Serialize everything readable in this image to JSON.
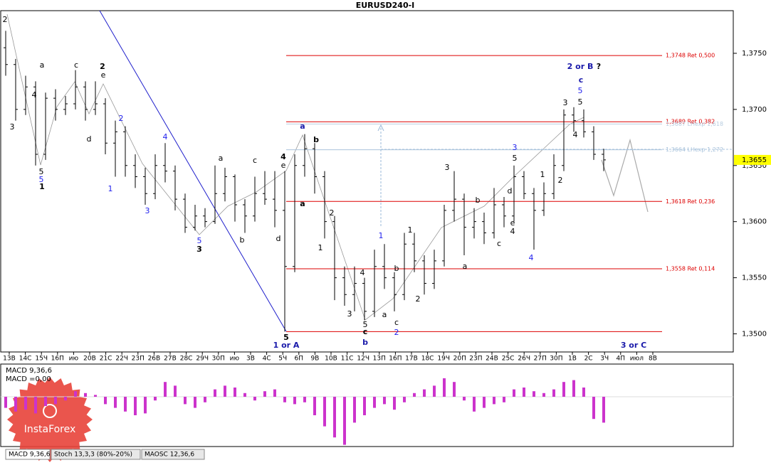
{
  "chart_data": {
    "type": "ohlc",
    "title": "EURUSD240-I",
    "ohlc": [
      [
        1.3755,
        1.377,
        1.373,
        1.374
      ],
      [
        1.374,
        1.3745,
        1.369,
        1.37
      ],
      [
        1.37,
        1.373,
        1.3695,
        1.372
      ],
      [
        1.372,
        1.3725,
        1.365,
        1.366
      ],
      [
        1.366,
        1.3715,
        1.3655,
        1.371
      ],
      [
        1.371,
        1.3718,
        1.369,
        1.37
      ],
      [
        1.37,
        1.3712,
        1.3695,
        1.3705
      ],
      [
        1.3705,
        1.3735,
        1.37,
        1.372
      ],
      [
        1.372,
        1.3725,
        1.369,
        1.37
      ],
      [
        1.37,
        1.3725,
        1.3695,
        1.3705
      ],
      [
        1.3705,
        1.371,
        1.366,
        1.367
      ],
      [
        1.367,
        1.369,
        1.364,
        1.368
      ],
      [
        1.368,
        1.3685,
        1.364,
        1.365
      ],
      [
        1.365,
        1.366,
        1.363,
        1.364
      ],
      [
        1.364,
        1.3648,
        1.3615,
        1.3625
      ],
      [
        1.3625,
        1.366,
        1.362,
        1.365
      ],
      [
        1.365,
        1.367,
        1.3635,
        1.3645
      ],
      [
        1.3645,
        1.365,
        1.361,
        1.362
      ],
      [
        1.362,
        1.3625,
        1.359,
        1.3595
      ],
      [
        1.3595,
        1.3615,
        1.3592,
        1.3605
      ],
      [
        1.3605,
        1.3612,
        1.3595,
        1.36
      ],
      [
        1.36,
        1.365,
        1.3598,
        1.3625
      ],
      [
        1.3625,
        1.3648,
        1.3618,
        1.364
      ],
      [
        1.364,
        1.3642,
        1.36,
        1.3615
      ],
      [
        1.3615,
        1.362,
        1.359,
        1.3605
      ],
      [
        1.3605,
        1.364,
        1.36,
        1.3625
      ],
      [
        1.3625,
        1.3645,
        1.3615,
        1.362
      ],
      [
        1.362,
        1.3645,
        1.3595,
        1.361
      ],
      [
        1.361,
        1.3645,
        1.3502,
        1.356
      ],
      [
        1.356,
        1.366,
        1.3555,
        1.365
      ],
      [
        1.365,
        1.3678,
        1.364,
        1.3665
      ],
      [
        1.3665,
        1.367,
        1.3625,
        1.364
      ],
      [
        1.364,
        1.3645,
        1.3585,
        1.36
      ],
      [
        1.36,
        1.3605,
        1.353,
        1.355
      ],
      [
        1.355,
        1.356,
        1.3525,
        1.3535
      ],
      [
        1.3535,
        1.356,
        1.352,
        1.3545
      ],
      [
        1.3545,
        1.355,
        1.3512,
        1.352
      ],
      [
        1.352,
        1.3575,
        1.3515,
        1.356
      ],
      [
        1.356,
        1.358,
        1.354,
        1.355
      ],
      [
        1.355,
        1.3555,
        1.352,
        1.3535
      ],
      [
        1.3535,
        1.359,
        1.353,
        1.358
      ],
      [
        1.358,
        1.359,
        1.3555,
        1.3565
      ],
      [
        1.3565,
        1.357,
        1.3535,
        1.3545
      ],
      [
        1.3545,
        1.3575,
        1.354,
        1.3565
      ],
      [
        1.3565,
        1.3615,
        1.356,
        1.361
      ],
      [
        1.361,
        1.3645,
        1.36,
        1.362
      ],
      [
        1.362,
        1.3625,
        1.357,
        1.3595
      ],
      [
        1.3595,
        1.3612,
        1.3585,
        1.36
      ],
      [
        1.36,
        1.3608,
        1.358,
        1.359
      ],
      [
        1.359,
        1.363,
        1.3585,
        1.3615
      ],
      [
        1.3615,
        1.3622,
        1.3595,
        1.3605
      ],
      [
        1.3605,
        1.365,
        1.36,
        1.364
      ],
      [
        1.364,
        1.3645,
        1.362,
        1.3625
      ],
      [
        1.3625,
        1.363,
        1.3575,
        1.361
      ],
      [
        1.361,
        1.3635,
        1.3605,
        1.3625
      ],
      [
        1.3625,
        1.366,
        1.362,
        1.365
      ],
      [
        1.365,
        1.37,
        1.3645,
        1.3695
      ],
      [
        1.3695,
        1.3702,
        1.368,
        1.369
      ],
      [
        1.369,
        1.37,
        1.3675,
        1.368
      ],
      [
        1.368,
        1.3685,
        1.3655,
        1.366
      ],
      [
        1.366,
        1.3665,
        1.3645,
        1.3655
      ]
    ],
    "color": "#000000",
    "ylim": [
      1.3487,
      1.3788
    ],
    "yticks": [
      {
        "value": 1.35,
        "label": "1,3500"
      },
      {
        "value": 1.355,
        "label": "1,3550"
      },
      {
        "value": 1.36,
        "label": "1,3600"
      },
      {
        "value": 1.365,
        "label": "1,3650"
      },
      {
        "value": 1.37,
        "label": "1,3700"
      },
      {
        "value": 1.375,
        "label": "1,3750"
      }
    ],
    "current_price": {
      "value": 1.3655,
      "label": "1,3655"
    },
    "fib_levels": [
      {
        "value": 1.3748,
        "label": "1,3748 Ret 0,500",
        "color": "#dd0000"
      },
      {
        "value": 1.3689,
        "label": "1,3689 Ret 0,382",
        "color": "#dd0000"
      },
      {
        "value": 1.3687,
        "label": "1,3687 LHexp 1,618",
        "color": "#b8cde0"
      },
      {
        "value": 1.3664,
        "label": "1,3664 LHexp 1,272",
        "color": "#a9c3dc"
      },
      {
        "value": 1.3618,
        "label": "1,3618 Ret 0,236",
        "color": "#dd0000"
      },
      {
        "value": 1.3558,
        "label": "1,3558 Ret 0,114",
        "color": "#dd0000"
      },
      {
        "value": 1.3502,
        "color": "#dd0000"
      }
    ],
    "x_labels": [
      "13В",
      "14С",
      "15Ч",
      "16П",
      "ию",
      "20В",
      "21С",
      "22Ч",
      "23П",
      "26В",
      "27В",
      "28С",
      "29Ч",
      "30П",
      "ию",
      "3В",
      "4С",
      "5Ч",
      "6П",
      "9В",
      "10В",
      "11С",
      "12Ч",
      "13П",
      "16П",
      "17В",
      "18С",
      "19Ч",
      "20П",
      "23П",
      "24В",
      "25С",
      "26Ч",
      "27П",
      "30П",
      "1В",
      "2С",
      "3Ч",
      "4П",
      "июл",
      "8В"
    ],
    "annotations": [
      "2",
      "a",
      "4",
      "3",
      "5",
      "5",
      "1",
      "c",
      "e",
      "2",
      "d",
      "2",
      "1",
      "4",
      "3",
      "5",
      "3",
      "a",
      "b",
      "c",
      "d",
      "4",
      "e",
      "a",
      "5",
      "1 or A",
      "a",
      "b",
      "2",
      "1",
      "3",
      "4",
      "5",
      "c",
      "b",
      "a",
      "b",
      "c",
      "2",
      "1",
      "2",
      "1",
      "3",
      "a",
      "b",
      "c",
      "d",
      "e",
      "4",
      "3",
      "5",
      "1",
      "2",
      "4",
      "3",
      "4",
      "5",
      "c",
      "5",
      "2 or B",
      "?",
      "3 or C"
    ],
    "macd": {
      "label": "MACD 9,36,6",
      "value_label": "MACD =0,00",
      "color": "#cc33cc",
      "values": [
        -0.0006,
        -0.0008,
        -0.0007,
        -0.0009,
        -0.0005,
        -0.0004,
        -0.0002,
        0.0003,
        0.0002,
        0.0001,
        -0.0004,
        -0.0006,
        -0.0008,
        -0.001,
        -0.0009,
        -0.0002,
        0.0008,
        0.0006,
        -0.0004,
        -0.0006,
        -0.0003,
        0.0004,
        0.0006,
        0.0005,
        0.0002,
        -0.0002,
        0.0003,
        0.0004,
        -0.0003,
        -0.0004,
        -0.0003,
        -0.001,
        -0.0016,
        -0.0022,
        -0.0026,
        -0.0014,
        -0.001,
        -0.0006,
        -0.0004,
        -0.0007,
        -0.0003,
        0.0002,
        0.0004,
        0.0006,
        0.001,
        0.0008,
        -0.0002,
        -0.0008,
        -0.0006,
        -0.0004,
        -0.0003,
        0.0004,
        0.0005,
        0.0003,
        0.0002,
        0.0004,
        0.0008,
        0.0009,
        0.0005,
        -0.0012,
        -0.0014
      ]
    },
    "tabs": [
      "MACD 9,36,6",
      "Stoch 13,3,3 (80%-20%)",
      "MAOSC 12,36,6"
    ],
    "logo": "InstaForex"
  }
}
